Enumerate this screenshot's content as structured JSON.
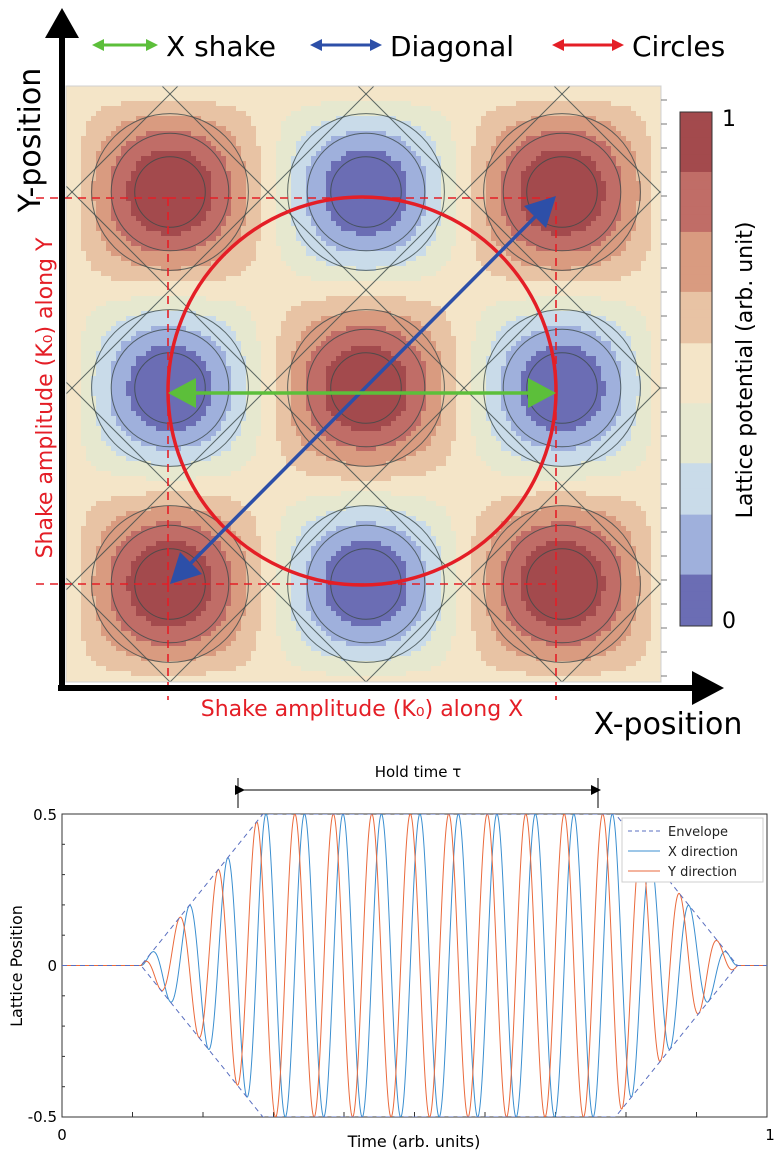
{
  "figure_top": {
    "legend": [
      {
        "label": "X shake",
        "color": "#5cbf3a"
      },
      {
        "label": "Diagonal",
        "color": "#2d4fa8"
      },
      {
        "label": "Circles",
        "color": "#e41e26"
      }
    ],
    "y_axis_label": "Y-position",
    "x_axis_label": "X-position",
    "shake_y_label": "Shake amplitude (K₀) along Y",
    "shake_x_label": "Shake amplitude (K₀) along X",
    "colorbar": {
      "label": "Lattice potential (arb. unit)",
      "max_label": "1",
      "min_label": "0",
      "colors": [
        "#6b6db4",
        "#9fb0dc",
        "#c9dbe9",
        "#e6e8cf",
        "#f4e5c8",
        "#e8c3a4",
        "#d99b80",
        "#c06d67",
        "#a34a4d"
      ]
    }
  },
  "chart_data": [
    {
      "type": "heatmap",
      "function": "cos(pi*x)*cos(pi*y) lattice potential",
      "contour_levels": 9,
      "shake_paths": [
        "X shake (horizontal)",
        "Diagonal",
        "Circles"
      ],
      "colorbar_range": [
        0,
        1
      ]
    },
    {
      "type": "line",
      "title": "Hold time τ",
      "xlabel": "Time (arb. units)",
      "ylabel": "Lattice Position",
      "xlim": [
        0,
        1
      ],
      "ylim": [
        -0.5,
        0.5
      ],
      "x_ticks": [
        "0",
        "1"
      ],
      "y_ticks": [
        "-0.5",
        "0",
        "0.5"
      ],
      "envelope": {
        "start": 0.112,
        "plateau_start": 0.285,
        "plateau_end": 0.785,
        "end": 0.958,
        "amplitude": 0.5
      },
      "series": [
        {
          "name": "Envelope",
          "color": "#5a6fc0",
          "style": "dashed"
        },
        {
          "name": "X direction",
          "color": "#3b8fd0",
          "style": "solid"
        },
        {
          "name": "Y direction",
          "color": "#ea6a3c",
          "style": "solid"
        }
      ],
      "frequency_periods": 15.5
    }
  ]
}
